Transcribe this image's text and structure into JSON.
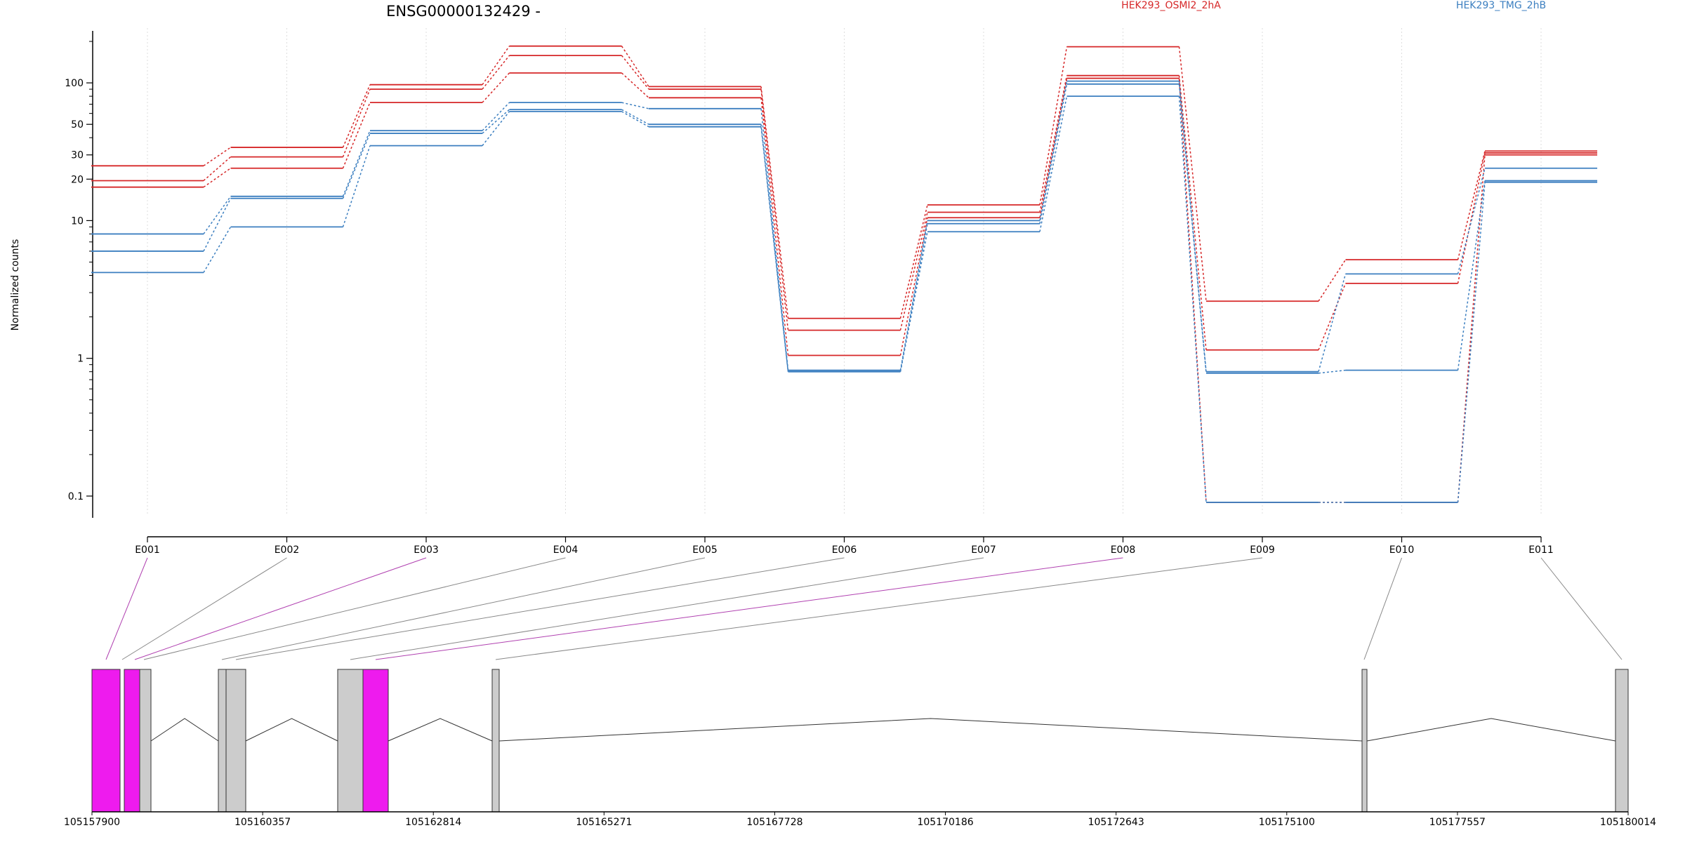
{
  "chart_data": {
    "type": "line",
    "title": "ENSG00000132429 -",
    "ylabel": "Normalized counts",
    "yscale": "log",
    "ylim": [
      0.08,
      250
    ],
    "yticks": [
      0.1,
      1,
      10,
      20,
      30,
      50,
      100
    ],
    "categories": [
      "E001",
      "E002",
      "E003",
      "E004",
      "E005",
      "E006",
      "E007",
      "E008",
      "E009",
      "E010",
      "E011"
    ],
    "legend": [
      {
        "name": "HEK293_OSMI2_2hA",
        "color": "#d62728"
      },
      {
        "name": "HEK293_TMG_2hB",
        "color": "#3c7fc0"
      }
    ],
    "series": [
      {
        "group": "HEK293_OSMI2_2hA",
        "values": [
          25,
          34,
          97,
          185,
          94,
          1.95,
          13,
          183,
          2.6,
          5.2,
          32
        ]
      },
      {
        "group": "HEK293_OSMI2_2hA",
        "values": [
          19.5,
          29,
          90,
          158,
          90,
          1.6,
          11.5,
          113,
          1.15,
          3.5,
          31
        ]
      },
      {
        "group": "HEK293_OSMI2_2hA",
        "values": [
          17.5,
          24,
          72,
          118,
          78,
          1.05,
          10.5,
          108,
          0.09,
          0.09,
          30
        ]
      },
      {
        "group": "HEK293_TMG_2hB",
        "values": [
          8,
          15,
          45,
          72,
          65,
          0.82,
          10,
          103,
          0.8,
          4.1,
          24
        ]
      },
      {
        "group": "HEK293_TMG_2hB",
        "values": [
          6,
          14.5,
          43,
          64,
          50,
          0.8,
          9.5,
          98,
          0.78,
          0.82,
          19.5
        ]
      },
      {
        "group": "HEK293_TMG_2hB",
        "values": [
          4.2,
          9,
          35,
          62,
          48,
          0.8,
          8.3,
          80,
          0.09,
          0.09,
          19
        ]
      }
    ],
    "genomic_axis": {
      "ticks": [
        "105157900",
        "105160357",
        "105162814",
        "105165271",
        "105167728",
        "105170186",
        "105172643",
        "105175100",
        "105177557",
        "105180014"
      ]
    },
    "colors": {
      "highlight_exon": "#ee1bee",
      "exon": "#cccccc",
      "connector_highlight": "#b040b0",
      "connector": "#888888"
    }
  }
}
